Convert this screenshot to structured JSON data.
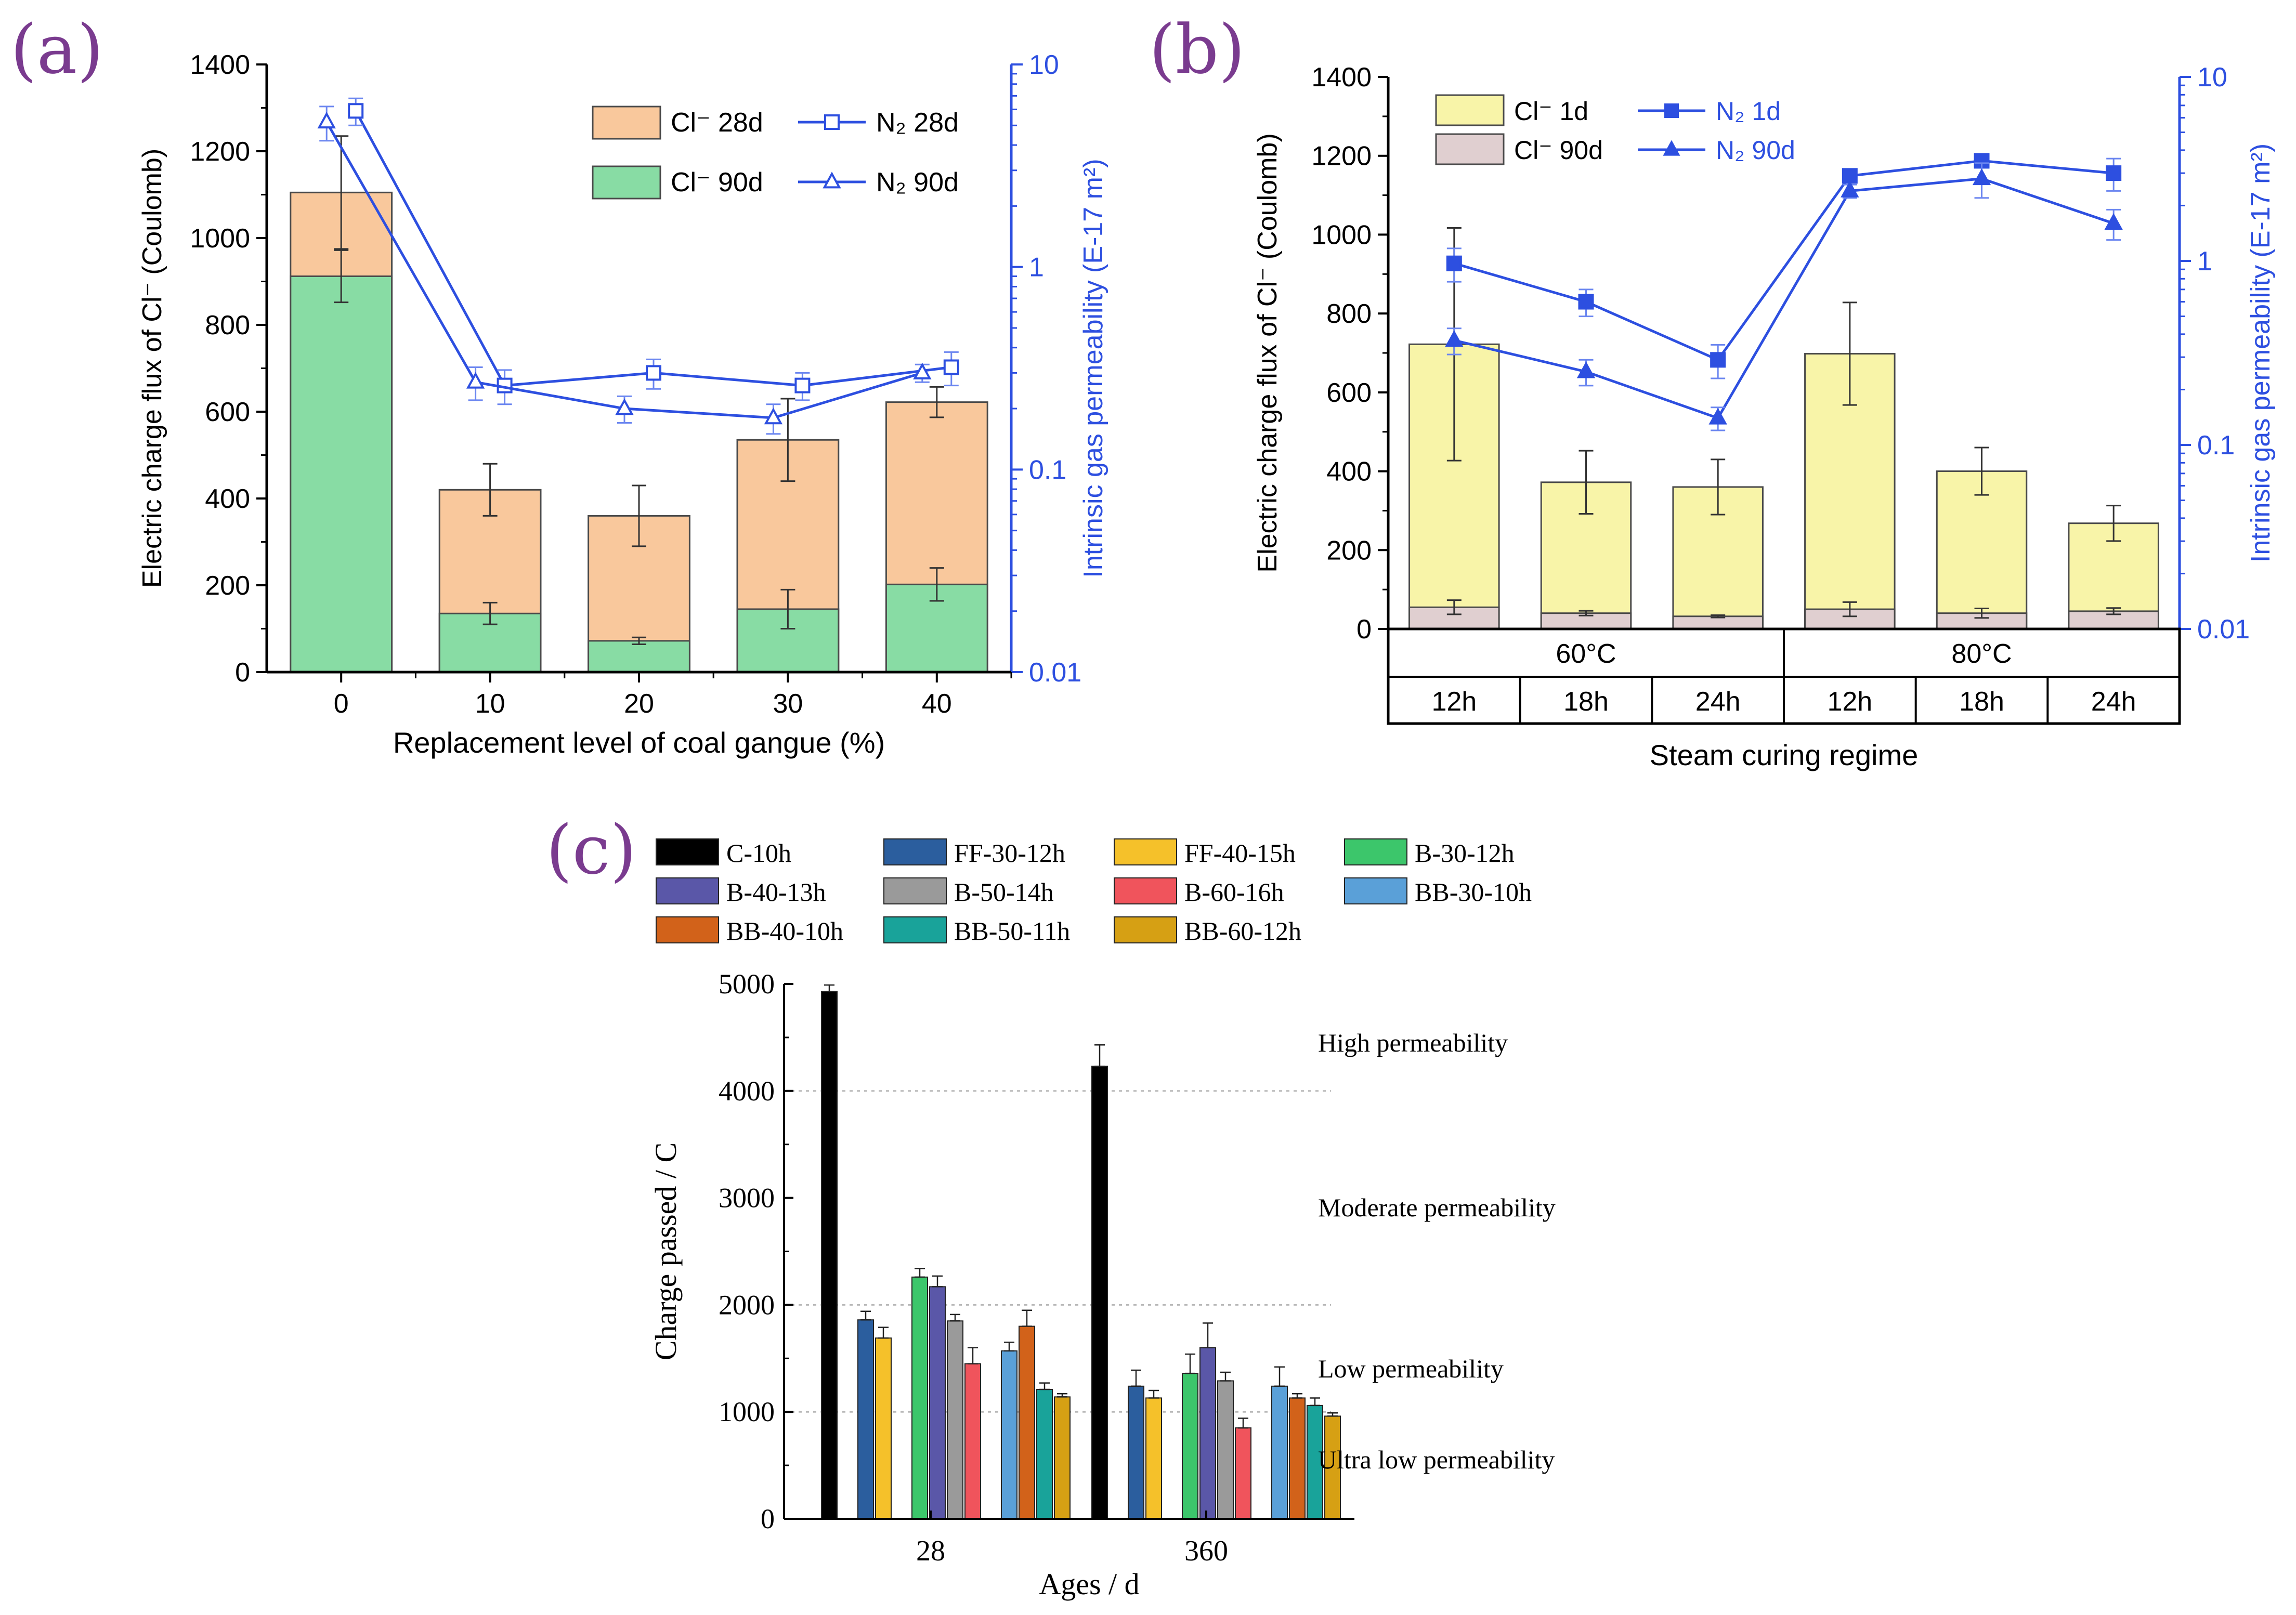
{
  "panel_labels": {
    "a": "(a)",
    "b": "(b)",
    "c": "(c)"
  },
  "colors": {
    "label_purple": "#7a3b8f",
    "axis_blue": "#2d4fe0",
    "a_cl28": "#f9c89c",
    "a_cl90": "#88dca4",
    "b_cl1": "#f8f4a8",
    "b_cl90": "#e0cfd0",
    "c_series": [
      "#000000",
      "#2b5e9e",
      "#f5c12a",
      "#3cc66b",
      "#5a57a8",
      "#9a9a9a",
      "#f0545c",
      "#5aa0d8",
      "#d2621a",
      "#19a39a",
      "#d6a014"
    ]
  },
  "chart_data": [
    {
      "id": "a",
      "type": "bar",
      "xlabel": "Replacement level of coal gangue (%)",
      "ylabel": "Electric charge flux of Cl⁻ (Coulomb)",
      "y2label": "Intrinsic gas permeability (E-17 m²)",
      "categories": [
        "0",
        "10",
        "20",
        "30",
        "40"
      ],
      "ylim": [
        0,
        1400
      ],
      "yticks": [
        "0",
        "200",
        "400",
        "600",
        "800",
        "1000",
        "1200",
        "1400"
      ],
      "y2lim": [
        0.01,
        10
      ],
      "y2ticks": [
        "0.01",
        "0.1",
        "1",
        "10"
      ],
      "bars": [
        {
          "name": "Cl⁻ 28d",
          "values": [
            1105,
            420,
            360,
            535,
            622
          ],
          "errors": [
            130,
            60,
            70,
            95,
            35
          ]
        },
        {
          "name": "Cl⁻ 90d",
          "values": [
            912,
            135,
            72,
            145,
            202
          ],
          "errors": [
            60,
            25,
            8,
            45,
            38
          ]
        }
      ],
      "lines": [
        {
          "name": "N₂ 28d",
          "marker": "square",
          "values": [
            5.9,
            0.26,
            0.3,
            0.26,
            0.32
          ],
          "errors": [
            0.9,
            0.05,
            0.05,
            0.04,
            0.06
          ]
        },
        {
          "name": "N₂ 90d",
          "marker": "triangle",
          "values": [
            5.2,
            0.27,
            0.2,
            0.18,
            0.3
          ],
          "errors": [
            1.0,
            0.05,
            0.03,
            0.03,
            0.03
          ]
        }
      ]
    },
    {
      "id": "b",
      "type": "bar",
      "xlabel": "Steam curing regime",
      "ylabel": "Electric charge flux of Cl⁻ (Coulomb)",
      "y2label": "Intrinsic gas permeability (E-17 m²)",
      "groups": [
        "60°C",
        "80°C"
      ],
      "categories": [
        "12h",
        "18h",
        "24h",
        "12h",
        "18h",
        "24h"
      ],
      "ylim": [
        0,
        1400
      ],
      "yticks": [
        "0",
        "200",
        "400",
        "600",
        "800",
        "1000",
        "1200",
        "1400"
      ],
      "y2lim": [
        0.01,
        10
      ],
      "y2ticks": [
        "0.01",
        "0.1",
        "1",
        "10"
      ],
      "bars": [
        {
          "name": "Cl⁻  1d",
          "values": [
            722,
            372,
            360,
            698,
            400,
            268
          ],
          "errors": [
            295,
            80,
            70,
            130,
            60,
            45
          ]
        },
        {
          "name": "Cl⁻ 90d",
          "values": [
            55,
            40,
            32,
            50,
            40,
            45
          ],
          "errors": [
            18,
            6,
            3,
            18,
            12,
            8
          ]
        }
      ],
      "lines": [
        {
          "name": "N₂  1d",
          "marker": "filled-square",
          "values": [
            0.97,
            0.6,
            0.29,
            2.9,
            3.5,
            3.0
          ],
          "errors": [
            0.2,
            0.1,
            0.06,
            0.15,
            0.2,
            0.6
          ]
        },
        {
          "name": "N₂ 90d",
          "marker": "filled-triangle",
          "values": [
            0.37,
            0.25,
            0.14,
            2.4,
            2.8,
            1.6
          ],
          "errors": [
            0.06,
            0.04,
            0.02,
            0.2,
            0.6,
            0.3
          ]
        }
      ]
    },
    {
      "id": "c",
      "type": "bar",
      "xlabel": "Ages / d",
      "ylabel": "Charge passed / C",
      "categories": [
        "28",
        "360"
      ],
      "ylim": [
        0,
        5000
      ],
      "yticks": [
        "0",
        "1000",
        "2000",
        "3000",
        "4000",
        "5000"
      ],
      "legend_columns": 4,
      "series": [
        {
          "name": "C-10h",
          "values": [
            4930,
            4230
          ],
          "errors": [
            60,
            200
          ]
        },
        {
          "name": "FF-30-12h",
          "values": [
            1860,
            1240
          ],
          "errors": [
            80,
            150
          ]
        },
        {
          "name": "FF-40-15h",
          "values": [
            1690,
            1130
          ],
          "errors": [
            100,
            70
          ]
        },
        {
          "name": "B-30-12h",
          "values": [
            2260,
            1360
          ],
          "errors": [
            80,
            180
          ]
        },
        {
          "name": "B-40-13h",
          "values": [
            2170,
            1600
          ],
          "errors": [
            100,
            230
          ]
        },
        {
          "name": "B-50-14h",
          "values": [
            1850,
            1290
          ],
          "errors": [
            60,
            80
          ]
        },
        {
          "name": "B-60-16h",
          "values": [
            1450,
            850
          ],
          "errors": [
            150,
            90
          ]
        },
        {
          "name": "BB-30-10h",
          "values": [
            1570,
            1240
          ],
          "errors": [
            80,
            180
          ]
        },
        {
          "name": "BB-40-10h",
          "values": [
            1800,
            1130
          ],
          "errors": [
            150,
            40
          ]
        },
        {
          "name": "BB-50-11h",
          "values": [
            1210,
            1060
          ],
          "errors": [
            60,
            70
          ]
        },
        {
          "name": "BB-60-12h",
          "values": [
            1140,
            960
          ],
          "errors": [
            30,
            30
          ]
        }
      ],
      "thresholds": [
        1000,
        2000,
        4000
      ],
      "annotations": [
        "High permeability",
        "Moderate permeability",
        "Low permeability",
        "Ultra low permeability"
      ]
    }
  ]
}
